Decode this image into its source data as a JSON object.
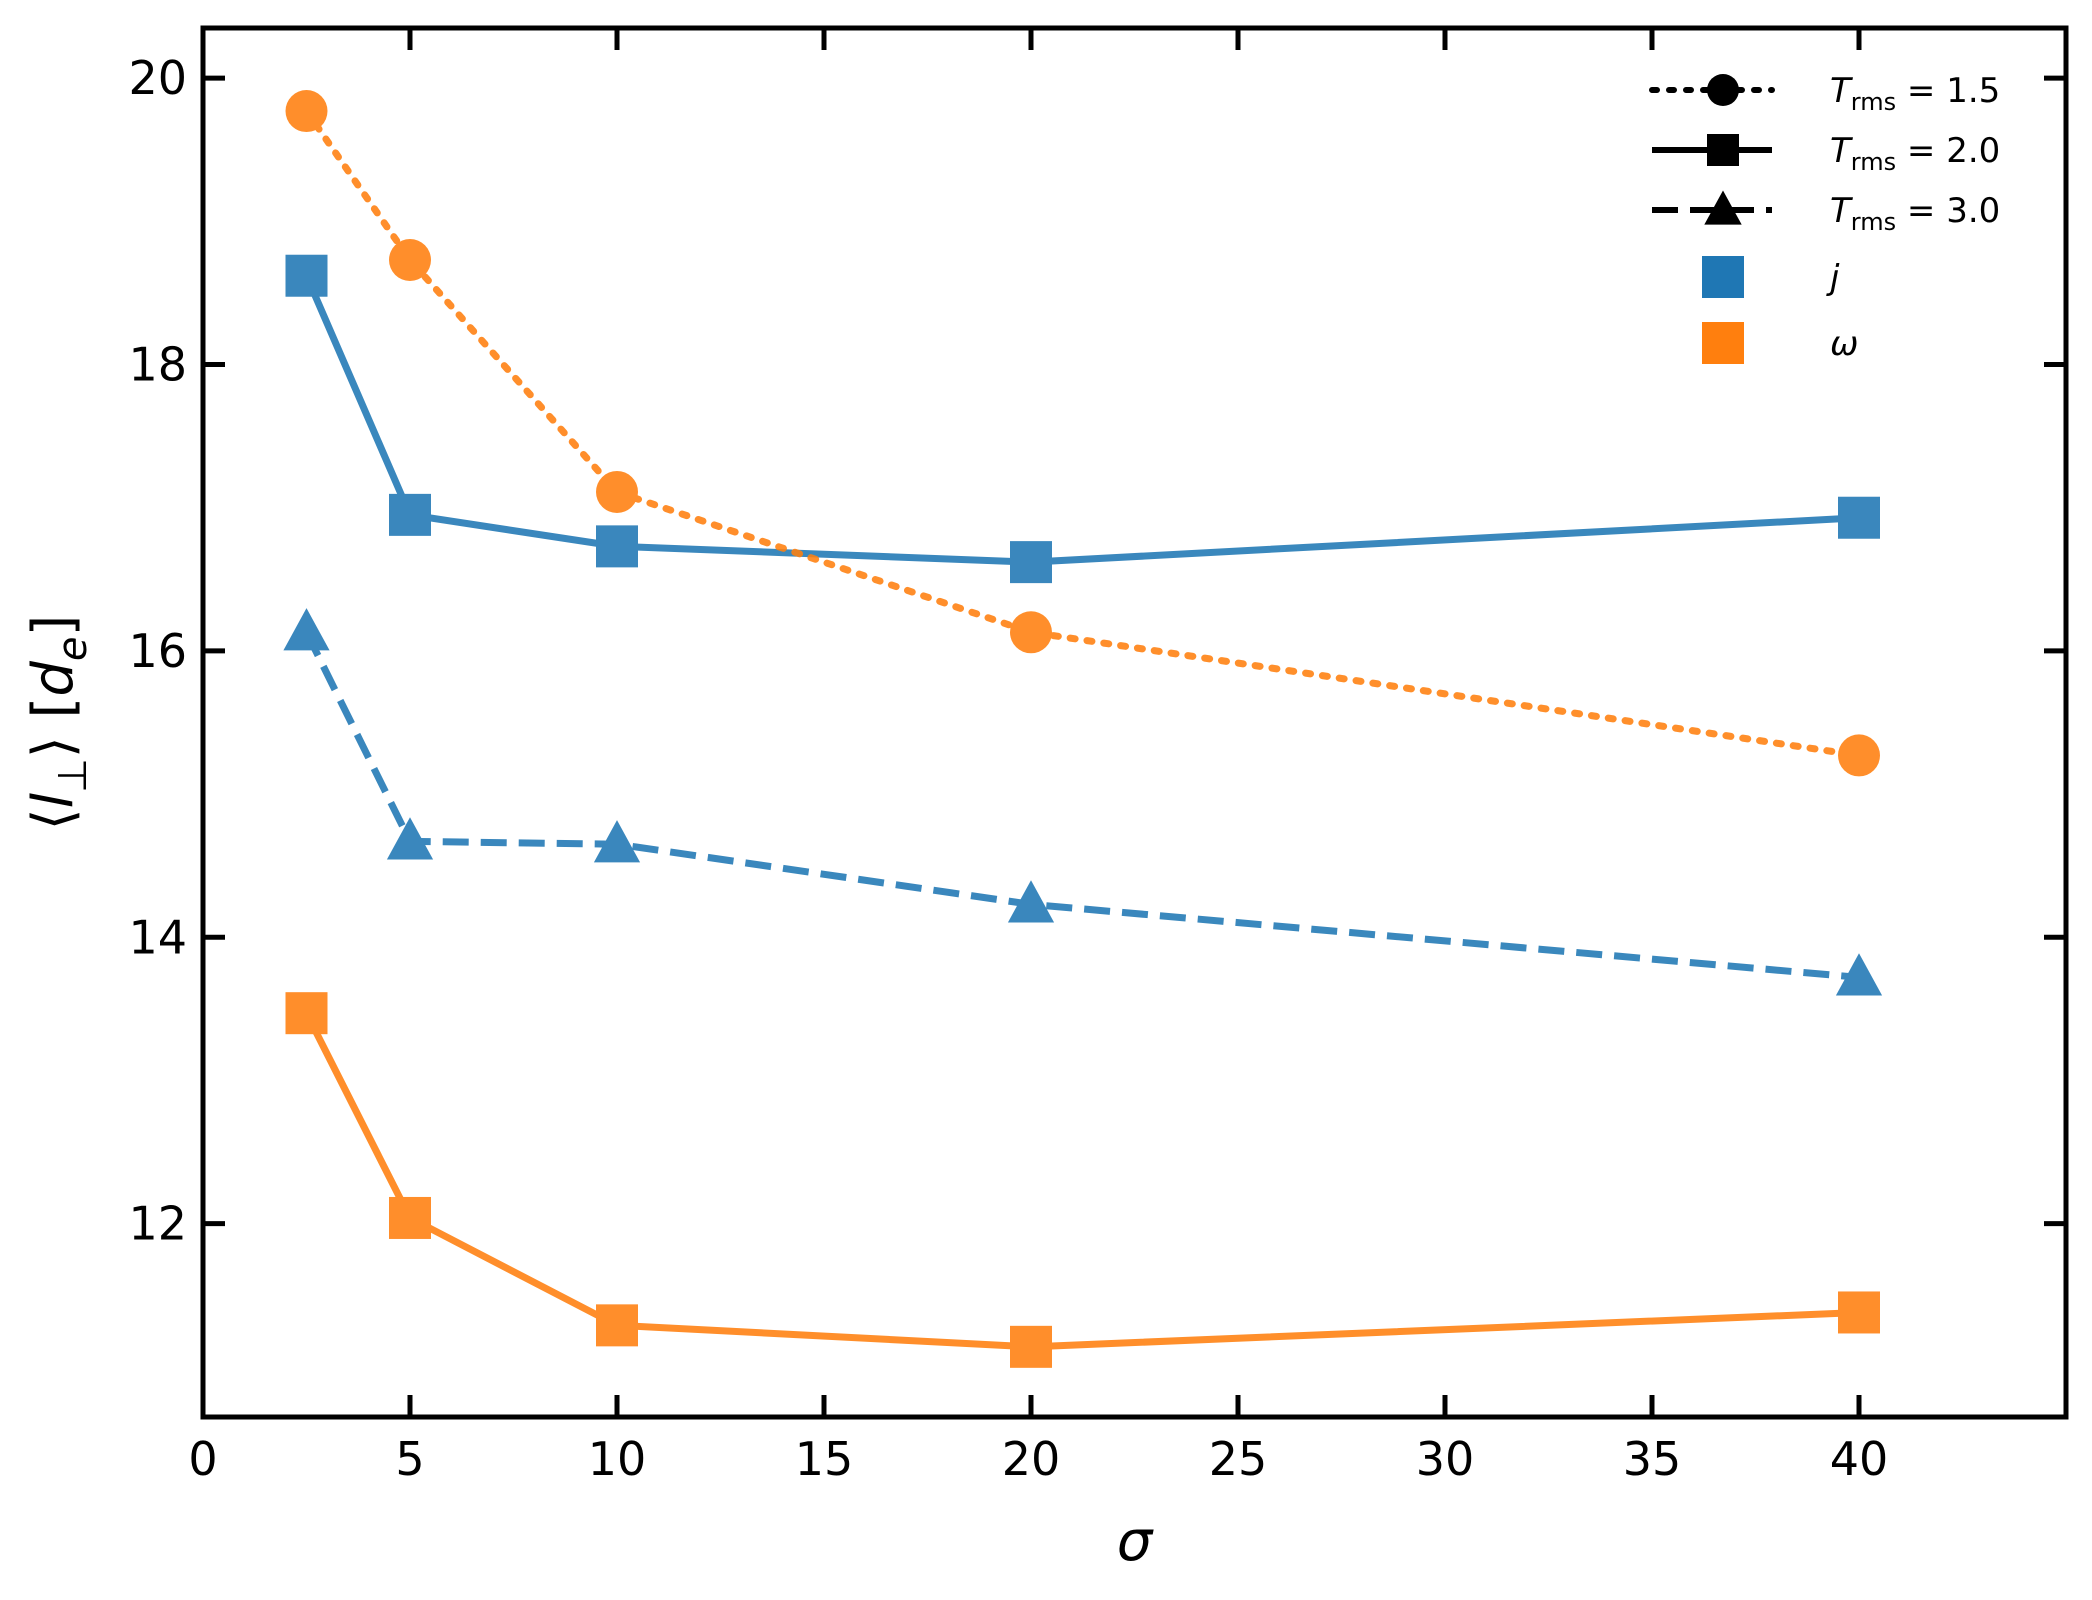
{
  "chart_data": {
    "type": "line",
    "xlabel": "σ",
    "ylabel": "⟨l⊥⟩ [de]",
    "xlim": [
      0,
      45
    ],
    "ylim": [
      10.65,
      20.35
    ],
    "xticks": [
      0,
      5,
      10,
      15,
      20,
      25,
      30,
      35,
      40
    ],
    "yticks": [
      12,
      14,
      16,
      18,
      20
    ],
    "grid": false,
    "legend_position": "top-right",
    "x": [
      2.5,
      5,
      10,
      20,
      40
    ],
    "series": [
      {
        "name": "j, T_rms = 2.0",
        "quantity": "j",
        "trms": "2.0",
        "marker": "square",
        "linestyle": "solid",
        "values": [
          18.62,
          16.95,
          16.73,
          16.62,
          16.93
        ]
      },
      {
        "name": "j, T_rms = 3.0",
        "quantity": "j",
        "trms": "3.0",
        "marker": "triangle",
        "linestyle": "dashed",
        "values": [
          16.13,
          14.67,
          14.65,
          14.23,
          13.72
        ]
      },
      {
        "name": "ω, T_rms = 1.5",
        "quantity": "ω",
        "trms": "1.5",
        "marker": "circle",
        "linestyle": "dotted",
        "values": [
          19.77,
          18.73,
          17.11,
          16.13,
          15.27
        ]
      },
      {
        "name": "ω, T_rms = 2.0",
        "quantity": "ω",
        "trms": "2.0",
        "marker": "square",
        "linestyle": "solid",
        "values": [
          13.47,
          12.04,
          11.29,
          11.14,
          11.38
        ]
      }
    ],
    "legend": {
      "style_entries": [
        {
          "label_var": "T",
          "label_sub": "rms",
          "label_value": " = 1.5",
          "marker": "circle",
          "linestyle": "dotted"
        },
        {
          "label_var": "T",
          "label_sub": "rms",
          "label_value": " = 2.0",
          "marker": "square",
          "linestyle": "solid"
        },
        {
          "label_var": "T",
          "label_sub": "rms",
          "label_value": " = 3.0",
          "marker": "triangle",
          "linestyle": "dashed"
        }
      ],
      "color_entries": [
        {
          "label": "j",
          "color": "#1f77b4"
        },
        {
          "label": "ω",
          "color": "#ff7f0e"
        }
      ]
    },
    "colors": {
      "j": "#1f77b4",
      "ω": "#ff7f0e",
      "legend_style": "#000000"
    }
  }
}
